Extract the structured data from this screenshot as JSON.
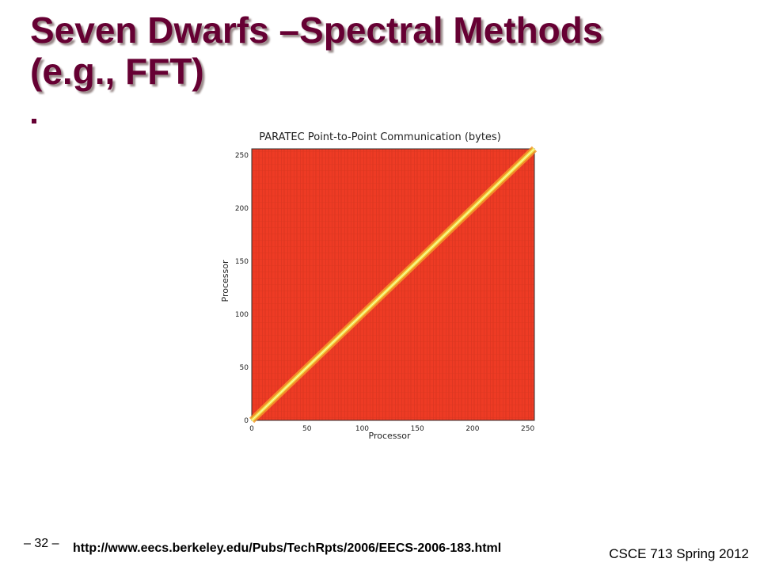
{
  "slide": {
    "title_line1": "Seven Dwarfs –Spectral Methods",
    "title_line2": "(e.g., FFT)",
    "page_number": "– 32 –",
    "url": "http://www.eecs.berkeley.edu/Pubs/TechRpts/2006/EECS-2006-183.html",
    "course": "CSCE 713 Spring 2012"
  },
  "colors": {
    "title": "#660033",
    "heatmap_background": "#ee3b24",
    "diagonal": "#f2e64a"
  },
  "chart_data": {
    "type": "heatmap",
    "title": "PARATEC Point-to-Point Communication (bytes)",
    "xlabel": "Processor",
    "ylabel": "Processor",
    "xlim": [
      0,
      256
    ],
    "ylim": [
      0,
      256
    ],
    "xticks": [
      0,
      50,
      100,
      150,
      200,
      250
    ],
    "yticks": [
      0,
      50,
      100,
      150,
      200,
      250
    ],
    "description_pattern": "uniform high all-to-all communication with bright diagonal",
    "diagonal_line": {
      "x": [
        0,
        256
      ],
      "y": [
        0,
        256
      ]
    }
  }
}
